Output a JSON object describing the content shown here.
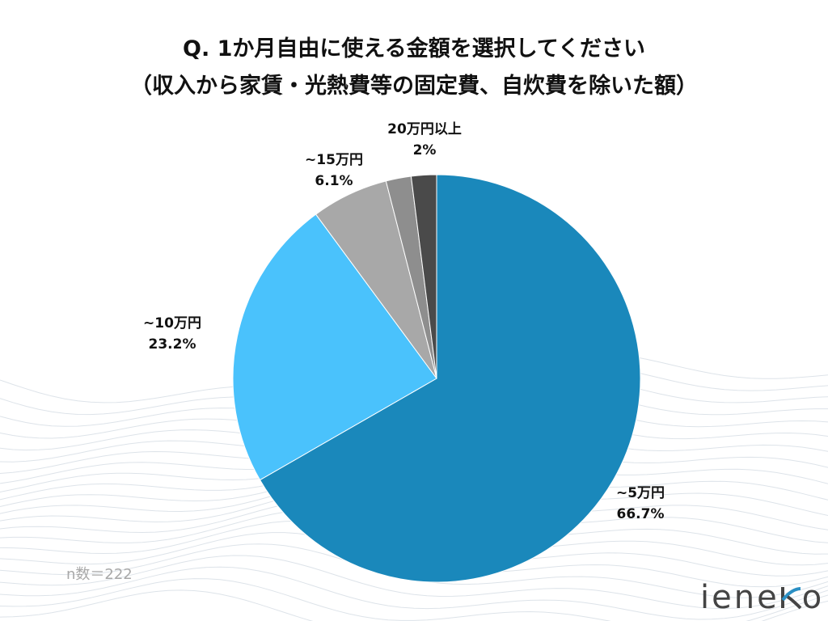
{
  "chart_data": {
    "type": "pie",
    "title_lines": [
      "Q. 1か月自由に使える金額を選択してください",
      "（収入から家賃・光熱費等の固定費、自炊費を除いた額）"
    ],
    "slices": [
      {
        "label": "~5万円",
        "value": 66.7,
        "value_label": "66.7%",
        "color": "#1a88bb"
      },
      {
        "label": "~10万円",
        "value": 23.2,
        "value_label": "23.2%",
        "color": "#4ac2fc"
      },
      {
        "label": "~15万円",
        "value": 6.1,
        "value_label": "6.1%",
        "color": "#a8a8a8"
      },
      {
        "label": "",
        "value": 2.0,
        "value_label": "",
        "color": "#8e8e8e"
      },
      {
        "label": "20万円以上",
        "value": 2.0,
        "value_label": "2%",
        "color": "#4a4a4a"
      }
    ],
    "start": "12 o'clock, clockwise"
  },
  "note": "n数＝222",
  "logo": {
    "text_before": "iene",
    "text_after": "o",
    "mark": "k"
  }
}
